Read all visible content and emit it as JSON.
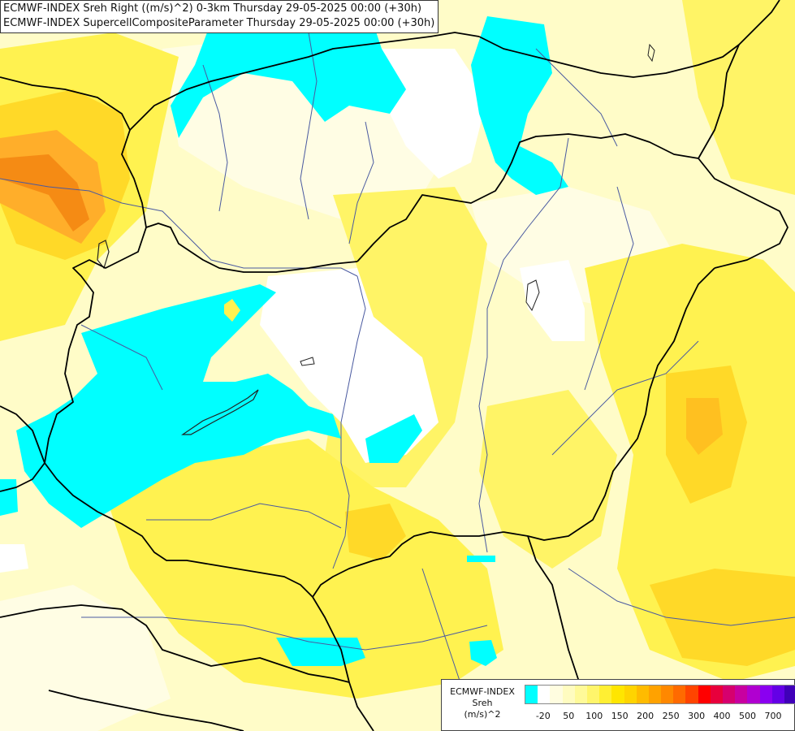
{
  "titles": {
    "line1": "ECMWF-INDEX Sreh Right ((m/s)^2) 0-3km Thursday 29-05-2025 00:00 (+30h)",
    "line2": "ECMWF-INDEX SupercellCompositeParameter Thursday 29-05-2025 00:00 (+30h)"
  },
  "legend": {
    "title1": "ECMWF-INDEX",
    "title2": "Sreh",
    "units": "(m/s)^2",
    "colors": [
      "#00ffff",
      "#ffffff",
      "#fffde0",
      "#fffcc0",
      "#fffa99",
      "#fff56b",
      "#ffef33",
      "#ffe600",
      "#ffd400",
      "#ffbb00",
      "#ffa200",
      "#ff8800",
      "#ff6a00",
      "#ff4400",
      "#ff0000",
      "#e8003c",
      "#d6006e",
      "#c800a0",
      "#b000d0",
      "#8a00f0",
      "#6400e6",
      "#4000b8",
      "#00007a"
    ],
    "ticks": [
      "-20",
      "50",
      "100",
      "150",
      "200",
      "250",
      "300",
      "400",
      "500",
      "700"
    ]
  },
  "colors": {
    "background": "#fffcc8",
    "cyan": "#00ffff",
    "white": "#ffffff",
    "yellow": "#fff250",
    "gold": "#ffd928",
    "orange": "#ffae2a",
    "deep_orange": "#f58b14",
    "border": "#000000",
    "river": "#4a5aa0"
  }
}
